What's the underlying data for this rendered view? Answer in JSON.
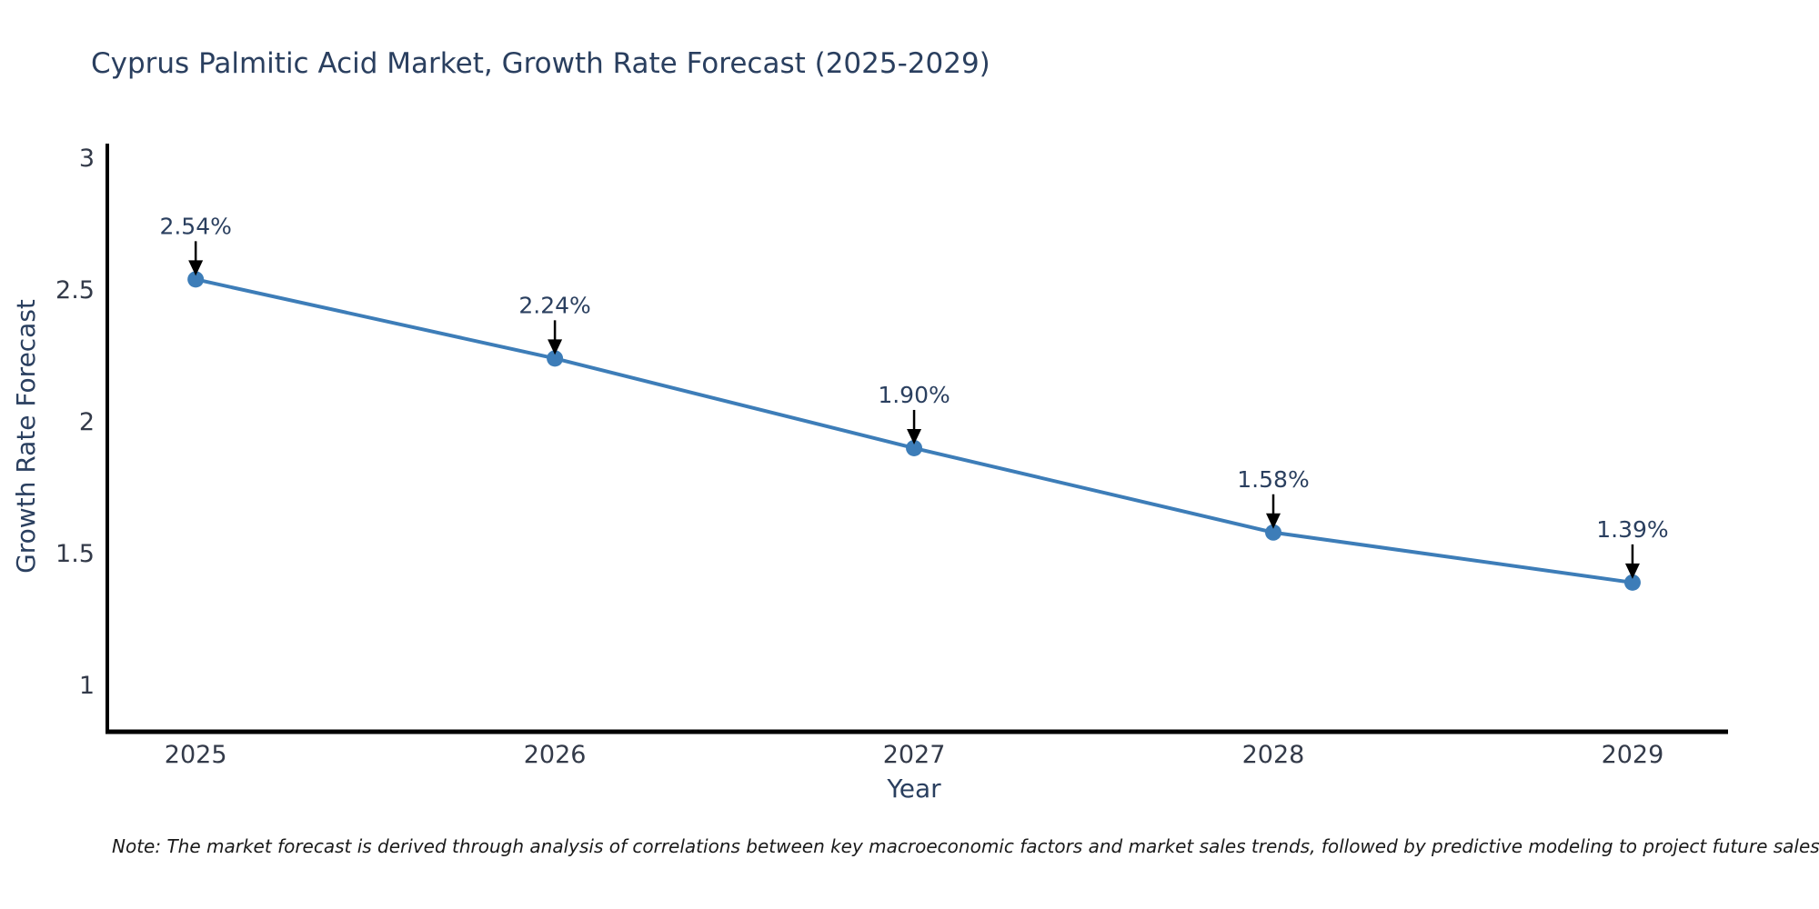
{
  "title": "Cyprus Palmitic Acid Market, Growth Rate Forecast (2025-2029)",
  "note": "Note: The market forecast is derived through analysis of correlations between key macroeconomic factors and market sales trends, followed by predictive modeling to project future sales",
  "chart_data": {
    "type": "line",
    "title": "Cyprus Palmitic Acid Market, Growth Rate Forecast (2025-2029)",
    "xlabel": "Year",
    "ylabel": "Growth Rate Forecast",
    "x": [
      2025,
      2026,
      2027,
      2028,
      2029
    ],
    "values": [
      2.54,
      2.24,
      1.9,
      1.58,
      1.39
    ],
    "point_labels": [
      "2.54%",
      "2.24%",
      "1.90%",
      "1.58%",
      "1.39%"
    ],
    "xtick_labels": [
      "2025",
      "2026",
      "2027",
      "2028",
      "2029"
    ],
    "yticks": [
      3,
      2.5,
      2,
      1.5,
      1
    ],
    "ytick_labels": [
      "3",
      "2.5",
      "2",
      "1.5",
      "1"
    ],
    "xlim": [
      2024.754,
      2029.266
    ],
    "ylim": [
      0.824,
      3.055
    ],
    "grid": false,
    "legend": "none",
    "annotations_have_arrows": true,
    "colors": {
      "line": "#3d7db8",
      "marker": "#3d7db8",
      "axis": "#000000",
      "arrow": "#000000",
      "text": "#2a3f5f",
      "tick_text": "#333a49",
      "note_text": "#1a1a1a",
      "background": "#ffffff"
    }
  }
}
